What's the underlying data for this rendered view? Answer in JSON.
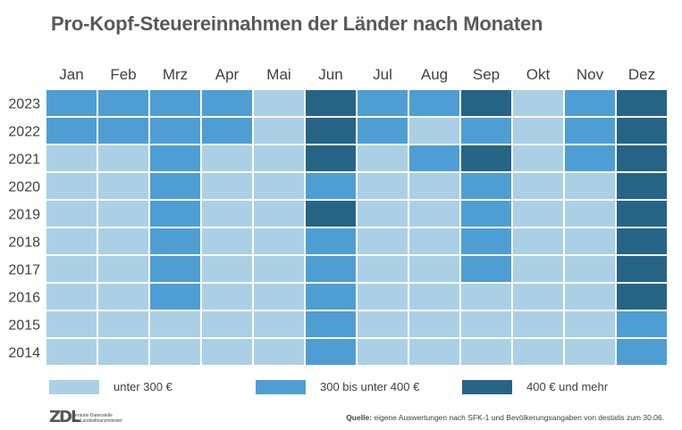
{
  "title": "Pro-Kopf-Steuereinnahmen der Länder nach Monaten",
  "chart_data": {
    "type": "heatmap",
    "title": "Pro-Kopf-Steuereinnahmen der Länder nach Monaten",
    "columns": [
      "Jan",
      "Feb",
      "Mrz",
      "Apr",
      "Mai",
      "Jun",
      "Jul",
      "Aug",
      "Sep",
      "Okt",
      "Nov",
      "Dez"
    ],
    "rows": [
      "2023",
      "2022",
      "2021",
      "2020",
      "2019",
      "2018",
      "2017",
      "2016",
      "2015",
      "2014"
    ],
    "categories": [
      "unter 300 €",
      "300 bis unter 400 €",
      "400 € und mehr"
    ],
    "colors": [
      "#abd0e6",
      "#4f9ed3",
      "#266486"
    ],
    "values": [
      [
        1,
        1,
        1,
        1,
        0,
        2,
        1,
        1,
        2,
        0,
        1,
        2
      ],
      [
        1,
        1,
        1,
        1,
        0,
        2,
        1,
        0,
        1,
        0,
        1,
        2
      ],
      [
        0,
        0,
        1,
        0,
        0,
        2,
        0,
        1,
        2,
        0,
        1,
        2
      ],
      [
        0,
        0,
        1,
        0,
        0,
        1,
        0,
        0,
        1,
        0,
        0,
        2
      ],
      [
        0,
        0,
        1,
        0,
        0,
        2,
        0,
        0,
        1,
        0,
        0,
        2
      ],
      [
        0,
        0,
        1,
        0,
        0,
        1,
        0,
        0,
        1,
        0,
        0,
        2
      ],
      [
        0,
        0,
        1,
        0,
        0,
        1,
        0,
        0,
        1,
        0,
        0,
        2
      ],
      [
        0,
        0,
        1,
        0,
        0,
        1,
        0,
        0,
        0,
        0,
        0,
        2
      ],
      [
        0,
        0,
        0,
        0,
        0,
        1,
        0,
        0,
        0,
        0,
        0,
        1
      ],
      [
        0,
        0,
        0,
        0,
        0,
        1,
        0,
        0,
        0,
        0,
        0,
        1
      ]
    ]
  },
  "legend": [
    {
      "label": "unter 300 €",
      "color": "#abd0e6"
    },
    {
      "label": "300 bis unter 400 €",
      "color": "#4f9ed3"
    },
    {
      "label": "400 € und mehr",
      "color": "#266486"
    }
  ],
  "logo": {
    "mark": "ZDL",
    "line1": "Zentrale Datenstelle",
    "line2": "der Landesfinanzminister"
  },
  "source": {
    "label": "Quelle:",
    "text": " eigene Auswertungen nach SFK-1 und Bevölkerungsangaben von destatis zum 30.06."
  }
}
